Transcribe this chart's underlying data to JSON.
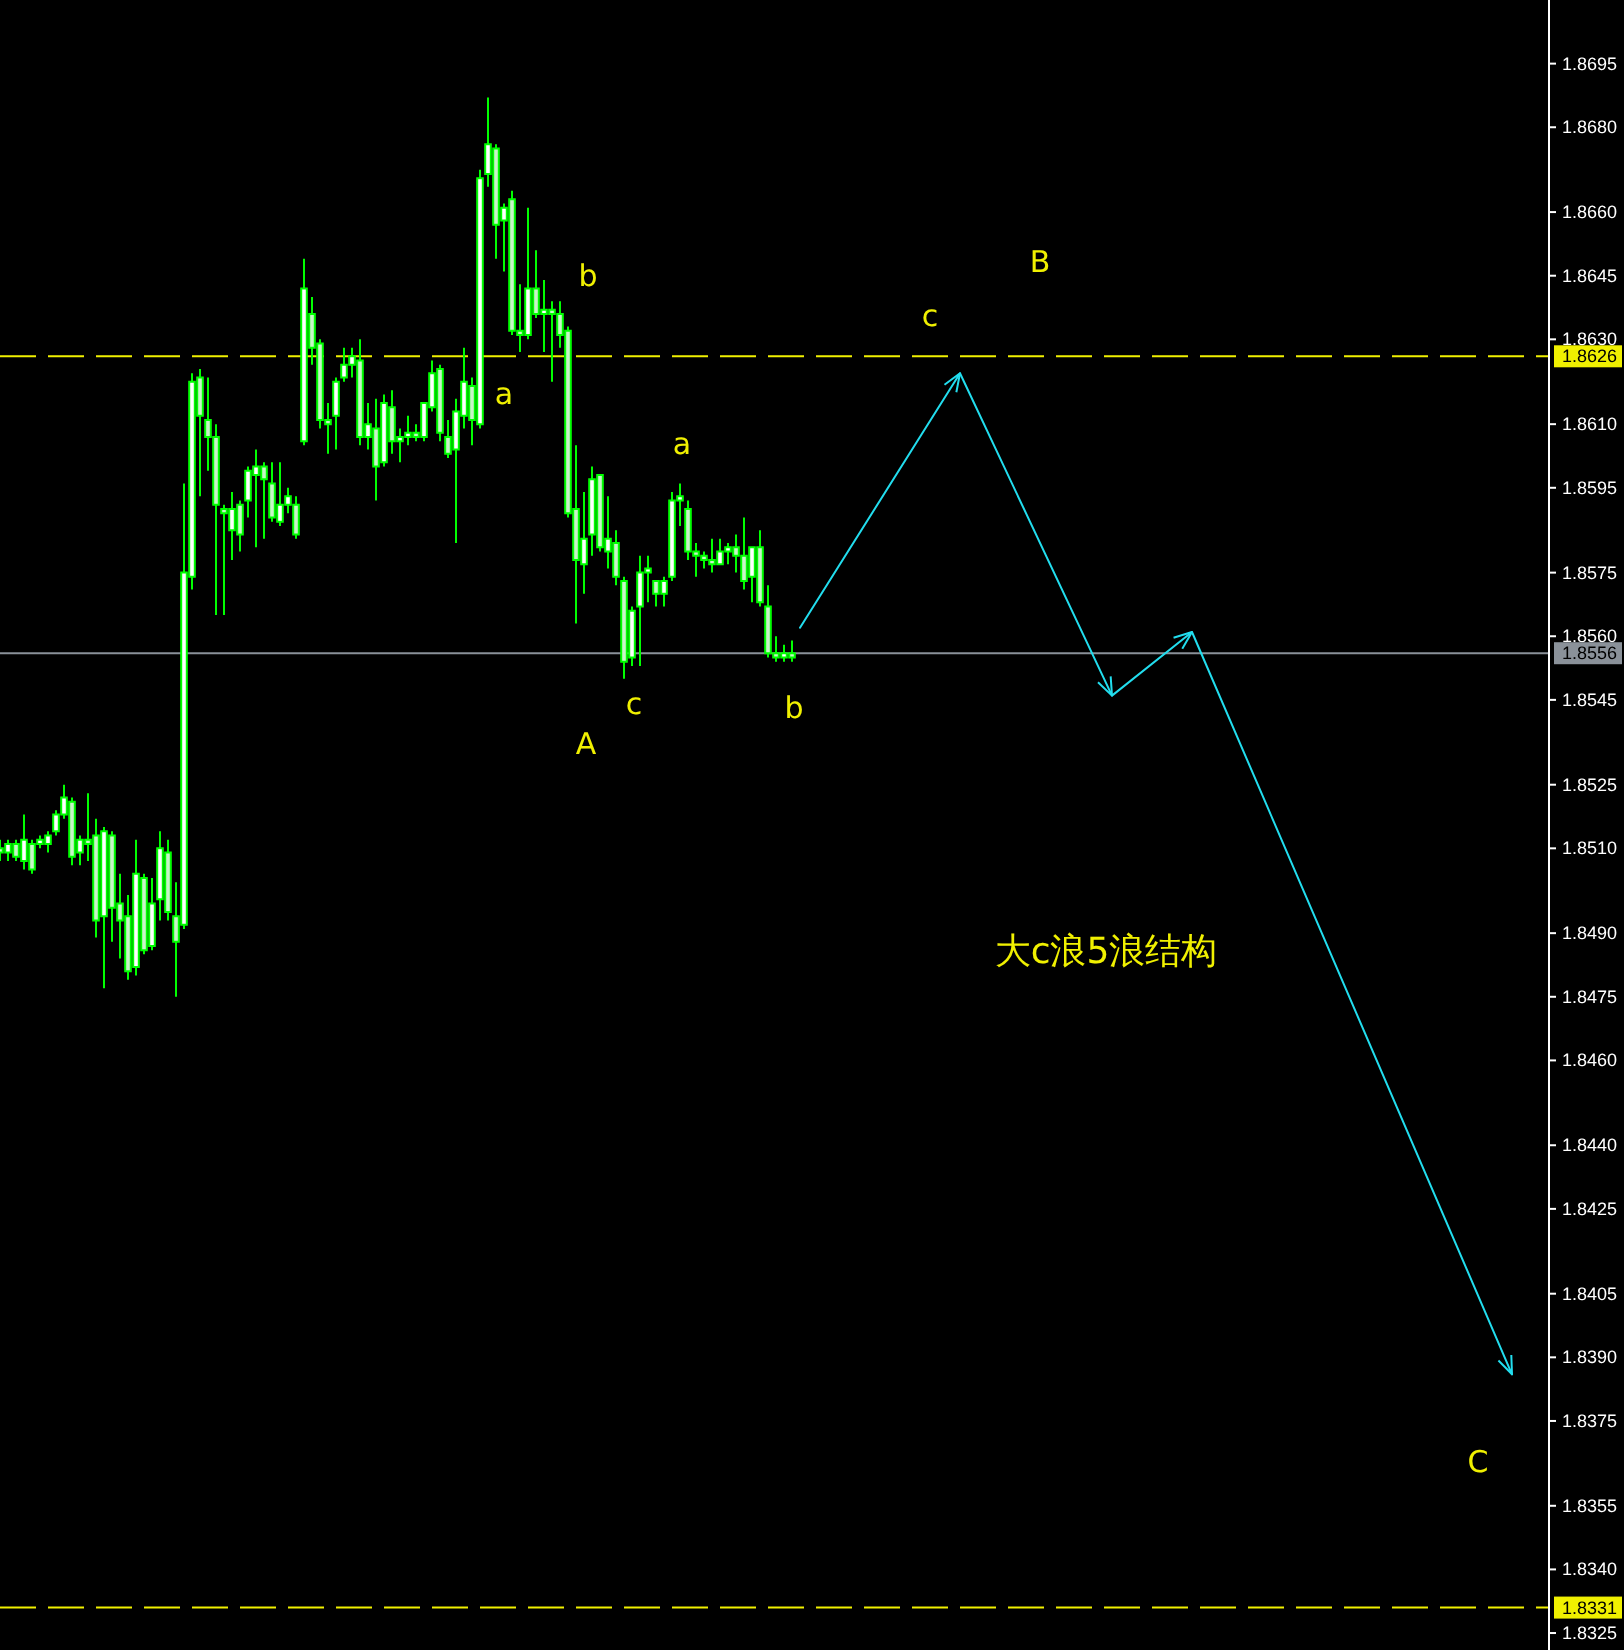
{
  "chart_data": {
    "type": "candlestick",
    "ylim": [
      1.8321,
      1.871
    ],
    "categories": [
      null,
      null,
      null,
      null,
      null,
      null,
      null,
      null,
      null,
      null,
      null,
      null,
      null,
      null,
      null,
      null,
      null,
      null,
      null,
      null,
      null,
      null,
      null,
      null,
      null,
      null,
      null,
      null,
      null,
      null,
      null,
      null,
      null,
      null,
      null,
      null,
      null,
      null,
      null,
      null,
      null,
      null,
      null,
      null,
      null,
      null,
      null,
      null,
      null,
      null,
      null,
      null,
      null,
      null,
      null,
      null,
      null,
      null,
      null,
      null,
      null,
      null,
      null,
      null,
      null,
      null,
      null,
      null,
      null,
      null,
      null,
      null,
      null,
      null,
      null,
      null,
      null,
      null,
      null,
      null,
      null,
      null,
      null,
      null,
      null,
      null,
      null,
      null,
      null,
      null,
      null,
      null,
      null,
      null,
      null,
      null,
      null,
      null,
      null,
      null,
      null,
      null,
      null,
      null,
      null,
      null,
      null,
      null,
      null,
      null,
      null,
      null,
      null,
      null,
      null,
      null,
      null,
      null,
      null,
      null,
      null,
      null,
      null,
      null,
      null,
      null,
      null,
      null,
      null,
      null,
      null,
      null,
      null,
      null,
      null,
      null,
      null,
      null,
      null,
      null,
      null,
      null,
      null,
      null,
      null,
      null,
      null,
      null,
      null,
      null,
      null,
      null,
      null,
      null,
      null,
      null,
      null,
      null,
      null,
      null,
      null,
      null,
      null,
      null,
      null,
      null,
      null,
      null,
      null,
      null,
      null,
      null,
      null,
      null,
      null,
      null,
      null,
      null,
      null,
      null,
      null,
      null,
      null,
      null,
      null,
      null,
      null,
      null,
      null,
      null,
      null,
      null,
      null,
      null
    ],
    "yticks": [
      1.8695,
      {
        "value": 1.868,
        "label": "1.8680"
      },
      {
        "value": 1.866,
        "label": "1.8660"
      },
      1.8645,
      {
        "value": 1.863,
        "label": "1.8630"
      },
      {
        "value": 1.861,
        "label": "1.8610"
      },
      1.8595,
      1.8575,
      {
        "value": 1.856,
        "label": "1.8560"
      },
      1.8545,
      1.8525,
      {
        "value": 1.851,
        "label": "1.8510"
      },
      {
        "value": 1.849,
        "label": "1.8490"
      },
      1.8475,
      {
        "value": 1.846,
        "label": "1.8460"
      },
      {
        "value": 1.844,
        "label": "1.8440"
      },
      1.8425,
      1.8405,
      {
        "value": 1.839,
        "label": "1.8390"
      },
      1.8375,
      1.8355,
      {
        "value": 1.834,
        "label": "1.8340"
      },
      1.8325
    ],
    "tick_labels": "y",
    "series": [
      {
        "color": "#00ff00",
        "ohlc": [
          [
            1.851,
            1.8512,
            1.8507,
            1.8509
          ],
          [
            1.8509,
            1.8512,
            1.8507,
            1.8511
          ],
          [
            1.8511,
            1.8512,
            1.8507,
            1.8508
          ],
          [
            1.8507,
            1.8518,
            1.8505,
            1.8512
          ],
          [
            1.8511,
            1.8512,
            1.8504,
            1.8505
          ],
          [
            1.8511,
            1.8513,
            1.851,
            1.8512
          ],
          [
            1.8511,
            1.8514,
            1.8509,
            1.8513
          ],
          [
            1.8514,
            1.8519,
            1.8513,
            1.8518
          ],
          [
            1.8518,
            1.8525,
            1.8517,
            1.8522
          ],
          [
            1.8521,
            1.8522,
            1.8506,
            1.8508
          ],
          [
            1.8509,
            1.8513,
            1.8506,
            1.8512
          ],
          [
            1.8512,
            1.8523,
            1.8507,
            1.8511
          ],
          [
            1.8513,
            1.8517,
            1.8489,
            1.8493
          ],
          [
            1.8494,
            1.8515,
            1.8477,
            1.8514
          ],
          [
            1.8513,
            1.8514,
            1.8488,
            1.8496
          ],
          [
            1.8497,
            1.8504,
            1.8484,
            1.8493
          ],
          [
            1.8494,
            1.8499,
            1.8479,
            1.8481
          ],
          [
            1.8482,
            1.8512,
            1.848,
            1.8504
          ],
          [
            1.8503,
            1.8504,
            1.8485,
            1.8486
          ],
          [
            1.8487,
            1.8503,
            1.8486,
            1.8497
          ],
          [
            1.8498,
            1.8514,
            1.8493,
            1.851
          ],
          [
            1.8509,
            1.8512,
            1.8493,
            1.8495
          ],
          [
            1.8494,
            1.8502,
            1.8475,
            1.8488
          ],
          [
            1.8492,
            1.8596,
            1.8491,
            1.8575
          ],
          [
            1.8574,
            1.8622,
            1.8571,
            1.862
          ],
          [
            1.8621,
            1.8623,
            1.8593,
            1.8612
          ],
          [
            1.8611,
            1.8621,
            1.8599,
            1.8607
          ],
          [
            1.8607,
            1.861,
            1.8565,
            1.8591
          ],
          [
            1.859,
            1.8591,
            1.8565,
            1.8589
          ],
          [
            1.8585,
            1.8594,
            1.8578,
            1.859
          ],
          [
            1.8591,
            1.8592,
            1.858,
            1.8584
          ],
          [
            1.8592,
            1.86,
            1.8588,
            1.8599
          ],
          [
            1.8598,
            1.8604,
            1.8581,
            1.86
          ],
          [
            1.86,
            1.8601,
            1.8583,
            1.8597
          ],
          [
            1.8596,
            1.8601,
            1.8587,
            1.8588
          ],
          [
            1.8587,
            1.8601,
            1.8586,
            1.8591
          ],
          [
            1.8591,
            1.8595,
            1.8589,
            1.8593
          ],
          [
            1.8591,
            1.8593,
            1.8583,
            1.8584
          ],
          [
            1.8606,
            1.8649,
            1.8605,
            1.8642
          ],
          [
            1.8636,
            1.864,
            1.8624,
            1.8628
          ],
          [
            1.8629,
            1.863,
            1.8609,
            1.8611
          ],
          [
            1.8611,
            1.8615,
            1.8603,
            1.861
          ],
          [
            1.8612,
            1.8621,
            1.8604,
            1.862
          ],
          [
            1.8621,
            1.8628,
            1.862,
            1.8624
          ],
          [
            1.8624,
            1.8628,
            1.8621,
            1.8626
          ],
          [
            1.8625,
            1.863,
            1.8605,
            1.8607
          ],
          [
            1.8607,
            1.8615,
            1.8604,
            1.861
          ],
          [
            1.8609,
            1.8616,
            1.8592,
            1.86
          ],
          [
            1.8601,
            1.8617,
            1.86,
            1.8615
          ],
          [
            1.8614,
            1.8618,
            1.8603,
            1.8606
          ],
          [
            1.8606,
            1.8609,
            1.8601,
            1.8607
          ],
          [
            1.8607,
            1.8612,
            1.8605,
            1.8608
          ],
          [
            1.8608,
            1.861,
            1.8606,
            1.8607
          ],
          [
            1.8607,
            1.8615,
            1.8606,
            1.8615
          ],
          [
            1.8614,
            1.8625,
            1.8613,
            1.8622
          ],
          [
            1.8623,
            1.8624,
            1.8606,
            1.8608
          ],
          [
            1.8607,
            1.8611,
            1.8602,
            1.8603
          ],
          [
            1.8604,
            1.8616,
            1.8582,
            1.8613
          ],
          [
            1.8612,
            1.8628,
            1.8609,
            1.862
          ],
          [
            1.8619,
            1.8621,
            1.8605,
            1.8611
          ],
          [
            1.861,
            1.867,
            1.8609,
            1.8668
          ],
          [
            1.8669,
            1.8687,
            1.8666,
            1.8676
          ],
          [
            1.8675,
            1.8676,
            1.8649,
            1.8657
          ],
          [
            1.8658,
            1.8662,
            1.8646,
            1.8661
          ],
          [
            1.8663,
            1.8665,
            1.8631,
            1.8632
          ],
          [
            1.8632,
            1.8643,
            1.8627,
            1.8631
          ],
          [
            1.8631,
            1.8661,
            1.863,
            1.8642
          ],
          [
            1.8642,
            1.8651,
            1.8635,
            1.8636
          ],
          [
            1.8636,
            1.8644,
            1.8627,
            1.8637
          ],
          [
            1.8637,
            1.8639,
            1.862,
            1.8636
          ],
          [
            1.8636,
            1.8639,
            1.8628,
            1.8631
          ],
          [
            1.8632,
            1.8633,
            1.8588,
            1.8589
          ],
          [
            1.859,
            1.8605,
            1.8563,
            1.8578
          ],
          [
            1.8577,
            1.8594,
            1.857,
            1.8583
          ],
          [
            1.8584,
            1.86,
            1.8579,
            1.8597
          ],
          [
            1.8598,
            1.8598,
            1.858,
            1.8581
          ],
          [
            1.858,
            1.8593,
            1.8576,
            1.8583
          ],
          [
            1.8582,
            1.8585,
            1.8572,
            1.8574
          ],
          [
            1.8573,
            1.8574,
            1.855,
            1.8554
          ],
          [
            1.8555,
            1.8567,
            1.8553,
            1.8566
          ],
          [
            1.8567,
            1.8579,
            1.8553,
            1.8575
          ],
          [
            1.8575,
            1.8579,
            1.8568,
            1.8576
          ],
          [
            1.8573,
            1.8573,
            1.8567,
            1.857
          ],
          [
            1.857,
            1.8574,
            1.8567,
            1.8573
          ],
          [
            1.8574,
            1.8594,
            1.8573,
            1.8592
          ],
          [
            1.8592,
            1.8596,
            1.8586,
            1.8593
          ],
          [
            1.859,
            1.8592,
            1.8578,
            1.858
          ],
          [
            1.858,
            1.8582,
            1.8574,
            1.8579
          ],
          [
            1.8579,
            1.858,
            1.8576,
            1.8578
          ],
          [
            1.8578,
            1.8583,
            1.8575,
            1.8577
          ],
          [
            1.8577,
            1.8583,
            1.8577,
            1.858
          ],
          [
            1.858,
            1.8582,
            1.8577,
            1.8581
          ],
          [
            1.8581,
            1.8584,
            1.8575,
            1.8579
          ],
          [
            1.8579,
            1.8588,
            1.8571,
            1.8573
          ],
          [
            1.8574,
            1.8581,
            1.8568,
            1.8581
          ],
          [
            1.8581,
            1.8585,
            1.8567,
            1.8568
          ],
          [
            1.8567,
            1.8572,
            1.8555,
            1.8556
          ],
          [
            1.8556,
            1.856,
            1.8554,
            1.8555
          ],
          [
            1.8555,
            1.8558,
            1.8554,
            1.8556
          ],
          [
            1.8556,
            1.8559,
            1.8554,
            1.8555
          ],
          null,
          null,
          null,
          null,
          null,
          null,
          null,
          null,
          null,
          null,
          null,
          null,
          null,
          null,
          null,
          null,
          null,
          null,
          null,
          null,
          null,
          null,
          null,
          null,
          null,
          null,
          null,
          null,
          null,
          null,
          null,
          null,
          null,
          null,
          null,
          null,
          null,
          null,
          null,
          null,
          null,
          null,
          null,
          null,
          null,
          null,
          null,
          null,
          null,
          null,
          null,
          null,
          null,
          null,
          null,
          null,
          null,
          null,
          null,
          null,
          null,
          null,
          null,
          null,
          null,
          null,
          null,
          null,
          null,
          null,
          null,
          null,
          null,
          null,
          null,
          null,
          null,
          null,
          null,
          null,
          null,
          null,
          null,
          null,
          null,
          null,
          null,
          null,
          null,
          null,
          null,
          null,
          null,
          null
        ]
      },
      {
        "type": "line",
        "color": "#22ddee",
        "values": [
          null,
          null,
          null,
          null,
          null,
          null,
          null,
          null,
          null,
          null,
          null,
          null,
          null,
          null,
          null,
          null,
          null,
          null,
          null,
          null,
          null,
          null,
          null,
          null,
          null,
          null,
          null,
          null,
          null,
          null,
          null,
          null,
          null,
          null,
          null,
          null,
          null,
          null,
          null,
          null,
          null,
          null,
          null,
          null,
          null,
          null,
          null,
          null,
          null,
          null,
          null,
          null,
          null,
          null,
          null,
          null,
          null,
          null,
          null,
          null,
          null,
          null,
          null,
          null,
          null,
          null,
          null,
          null,
          null,
          null,
          null,
          null,
          null,
          null,
          null,
          null,
          null,
          null,
          null,
          null,
          null,
          null,
          null,
          null,
          null,
          null,
          null,
          null,
          null,
          null,
          null,
          null,
          null,
          null,
          null,
          null,
          null,
          null,
          null,
          null,
          1.8562,
          null,
          null,
          null,
          null,
          null,
          null,
          null,
          null,
          null,
          null,
          null,
          null,
          null,
          null,
          null,
          null,
          null,
          null,
          null,
          1.8622,
          null,
          null,
          null,
          null,
          null,
          null,
          null,
          null,
          null,
          null,
          null,
          null,
          null,
          null,
          null,
          null,
          null,
          null,
          1.8546,
          null,
          null,
          null,
          null,
          null,
          null,
          null,
          null,
          null,
          1.8561,
          null,
          null,
          null,
          null,
          null,
          null,
          null,
          null,
          null,
          null,
          null,
          null,
          null,
          null,
          null,
          null,
          null,
          null,
          null,
          null,
          null,
          null,
          null,
          null,
          null,
          null,
          null,
          null,
          null,
          null,
          null,
          null,
          null,
          null,
          null,
          null,
          null,
          null,
          null,
          1.8386,
          null,
          null,
          null,
          null
        ]
      }
    ],
    "ref_lines": [
      {
        "axis": "y",
        "value": 1.8626,
        "label": "1.8626",
        "color": "#f0f000",
        "line_style": "dashed"
      },
      {
        "axis": "y",
        "value": 1.8556,
        "label": "1.8556",
        "color": "#8a9199",
        "line_style": "solid"
      },
      {
        "axis": "y",
        "value": 1.8331,
        "label": "1.8331",
        "color": "#f0f000",
        "line_style": "dashed"
      }
    ],
    "annotations": [
      "a",
      "b",
      "A",
      "c",
      "a",
      "b",
      "c",
      "B",
      "大c浪5浪结构",
      "C"
    ]
  }
}
